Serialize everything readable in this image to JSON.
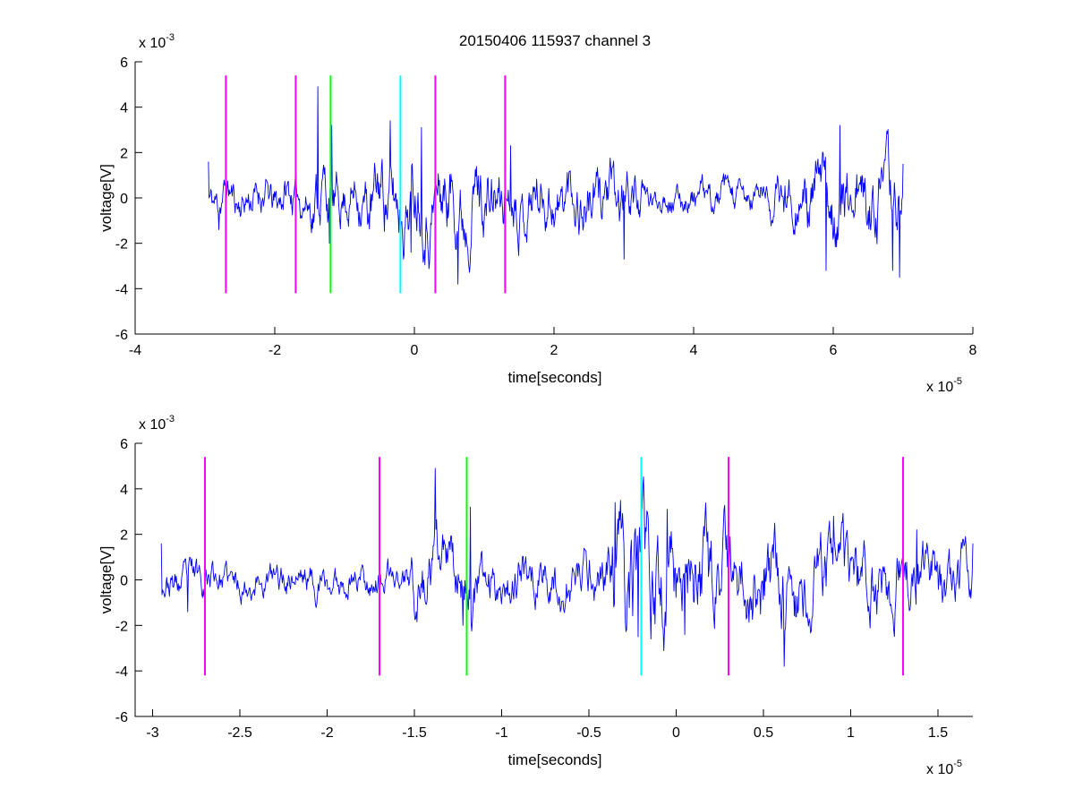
{
  "title": "20150406 115937 channel 3",
  "colors": {
    "signal": "#0000ff",
    "marker_magenta": "#ff00ff",
    "marker_green": "#00ff00",
    "marker_cyan": "#00ffff",
    "axes": "#000000",
    "background": "#ffffff"
  },
  "chart_data": [
    {
      "type": "line",
      "xlabel": "time[seconds]",
      "ylabel": "voltage[V]",
      "x_exponent": {
        "base": "x 10",
        "power": "-5"
      },
      "y_exponent": {
        "base": "x 10",
        "power": "-3"
      },
      "xlim": [
        -4,
        8
      ],
      "ylim": [
        -6,
        6
      ],
      "xticks": [
        -4,
        -2,
        0,
        2,
        4,
        6,
        8
      ],
      "xtick_labels": [
        "-4",
        "-2",
        "0",
        "2",
        "4",
        "6",
        "8"
      ],
      "yticks": [
        -6,
        -4,
        -2,
        0,
        2,
        4,
        6
      ],
      "ytick_labels": [
        "-6",
        "-4",
        "-2",
        "0",
        "2",
        "4",
        "6"
      ],
      "grid": false,
      "legend": "none",
      "series": [
        {
          "x_range": [
            -2.95,
            7.0
          ],
          "seed": 11,
          "envelope": [
            [
              -2.95,
              0.7
            ],
            [
              -1.5,
              0.8
            ],
            [
              -1.4,
              1.4
            ],
            [
              -1.0,
              0.9
            ],
            [
              -0.4,
              1.5
            ],
            [
              0.0,
              1.4
            ],
            [
              0.6,
              1.5
            ],
            [
              1.5,
              1.1
            ],
            [
              2.6,
              1.2
            ],
            [
              3.2,
              1.0
            ],
            [
              3.3,
              0.5
            ],
            [
              5.0,
              0.6
            ],
            [
              5.3,
              1.0
            ],
            [
              6.2,
              1.4
            ],
            [
              7.0,
              1.3
            ]
          ],
          "anchors": [
            [
              -2.95,
              1.6
            ],
            [
              -2.8,
              -1.4
            ],
            [
              -1.38,
              4.9
            ],
            [
              -1.22,
              -2.0
            ],
            [
              -1.18,
              3.2
            ],
            [
              -0.35,
              3.4
            ],
            [
              -0.05,
              -2.4
            ],
            [
              0.1,
              3.1
            ],
            [
              0.62,
              -3.8
            ],
            [
              1.38,
              2.3
            ],
            [
              3.0,
              -2.7
            ],
            [
              5.9,
              -3.2
            ],
            [
              6.1,
              3.2
            ],
            [
              6.85,
              -3.2
            ],
            [
              6.95,
              -3.5
            ],
            [
              7.0,
              1.5
            ]
          ]
        }
      ],
      "markers": [
        {
          "x": -2.7,
          "color": "magenta",
          "y_range": [
            -4.2,
            5.4
          ]
        },
        {
          "x": -1.7,
          "color": "magenta",
          "y_range": [
            -4.2,
            5.4
          ]
        },
        {
          "x": -1.2,
          "color": "green",
          "y_range": [
            -4.2,
            5.4
          ]
        },
        {
          "x": -0.2,
          "color": "cyan",
          "y_range": [
            -4.2,
            5.4
          ]
        },
        {
          "x": 0.3,
          "color": "magenta",
          "y_range": [
            -4.2,
            5.4
          ]
        },
        {
          "x": 1.3,
          "color": "magenta",
          "y_range": [
            -4.2,
            5.4
          ]
        }
      ]
    },
    {
      "type": "line",
      "xlabel": "time[seconds]",
      "ylabel": "voltage[V]",
      "x_exponent": {
        "base": "x 10",
        "power": "-5"
      },
      "y_exponent": {
        "base": "x 10",
        "power": "-3"
      },
      "xlim": [
        -3.1,
        1.7
      ],
      "ylim": [
        -6,
        6
      ],
      "xticks": [
        -3,
        -2.5,
        -2,
        -1.5,
        -1,
        -0.5,
        0,
        0.5,
        1,
        1.5
      ],
      "xtick_labels": [
        "-3",
        "-2.5",
        "-2",
        "-1.5",
        "-1",
        "-0.5",
        "0",
        "0.5",
        "1",
        "1.5"
      ],
      "yticks": [
        -6,
        -4,
        -2,
        0,
        2,
        4,
        6
      ],
      "ytick_labels": [
        "-6",
        "-4",
        "-2",
        "0",
        "2",
        "4",
        "6"
      ],
      "grid": false,
      "legend": "none",
      "series": [
        {
          "x_range": [
            -2.95,
            1.7
          ],
          "seed": 23,
          "envelope": [
            [
              -2.95,
              0.6
            ],
            [
              -2.7,
              0.8
            ],
            [
              -2.6,
              0.6
            ],
            [
              -1.6,
              0.7
            ],
            [
              -1.5,
              1.3
            ],
            [
              -1.3,
              1.2
            ],
            [
              -1.0,
              0.9
            ],
            [
              -0.4,
              1.0
            ],
            [
              -0.35,
              2.4
            ],
            [
              0.1,
              2.2
            ],
            [
              0.6,
              1.6
            ],
            [
              1.0,
              1.4
            ],
            [
              1.7,
              1.2
            ]
          ],
          "anchors": [
            [
              -2.95,
              1.6
            ],
            [
              -2.8,
              -1.4
            ],
            [
              -1.38,
              4.9
            ],
            [
              -1.22,
              -2.0
            ],
            [
              -1.18,
              3.2
            ],
            [
              -0.35,
              3.4
            ],
            [
              -0.22,
              -2.5
            ],
            [
              -0.05,
              3.1
            ],
            [
              0.05,
              -2.4
            ],
            [
              0.62,
              -3.8
            ],
            [
              0.9,
              2.8
            ],
            [
              1.38,
              2.2
            ],
            [
              1.7,
              1.6
            ]
          ]
        }
      ],
      "markers": [
        {
          "x": -2.7,
          "color": "magenta",
          "y_range": [
            -4.2,
            5.4
          ]
        },
        {
          "x": -1.7,
          "color": "magenta",
          "y_range": [
            -4.2,
            5.4
          ]
        },
        {
          "x": -1.2,
          "color": "green",
          "y_range": [
            -4.2,
            5.4
          ]
        },
        {
          "x": -0.2,
          "color": "cyan",
          "y_range": [
            -4.2,
            5.4
          ]
        },
        {
          "x": 0.3,
          "color": "magenta",
          "y_range": [
            -4.2,
            5.4
          ]
        },
        {
          "x": 1.3,
          "color": "magenta",
          "y_range": [
            -4.2,
            5.4
          ]
        }
      ]
    }
  ]
}
